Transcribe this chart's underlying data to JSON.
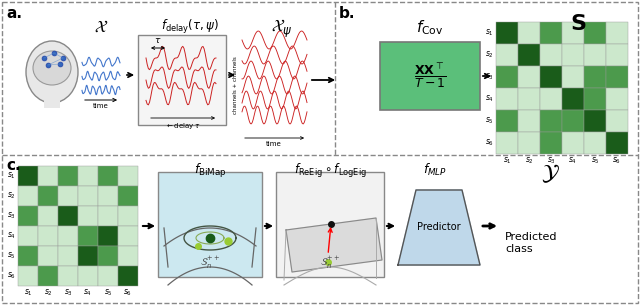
{
  "bg_color": "#ffffff",
  "panel_a_label": "a.",
  "panel_b_label": "b.",
  "panel_c_label": "c.",
  "cov_box_color": "#5bbf7a",
  "bimap_box_color": "#cce8f0",
  "predictor_box_color": "#b8d4e8",
  "matrix_S": [
    [
      3,
      1,
      2,
      1,
      2,
      1
    ],
    [
      1,
      3,
      1,
      1,
      1,
      1
    ],
    [
      2,
      1,
      3,
      1,
      2,
      2
    ],
    [
      1,
      1,
      1,
      3,
      2,
      1
    ],
    [
      2,
      1,
      2,
      2,
      3,
      1
    ],
    [
      1,
      1,
      2,
      1,
      1,
      3
    ]
  ],
  "matrix_C": [
    [
      3,
      1,
      2,
      1,
      2,
      1
    ],
    [
      1,
      2,
      1,
      1,
      1,
      2
    ],
    [
      2,
      1,
      3,
      1,
      1,
      1
    ],
    [
      1,
      1,
      1,
      2,
      3,
      1
    ],
    [
      2,
      1,
      1,
      3,
      2,
      1
    ],
    [
      1,
      2,
      1,
      1,
      1,
      3
    ]
  ],
  "wave_color": "#cc2222",
  "eeg_color": "#4477cc",
  "dark_green": "#1a5c1a",
  "mid_green": "#4c9a4c",
  "light_green": "#90c890",
  "vlight_green": "#cce8cc"
}
